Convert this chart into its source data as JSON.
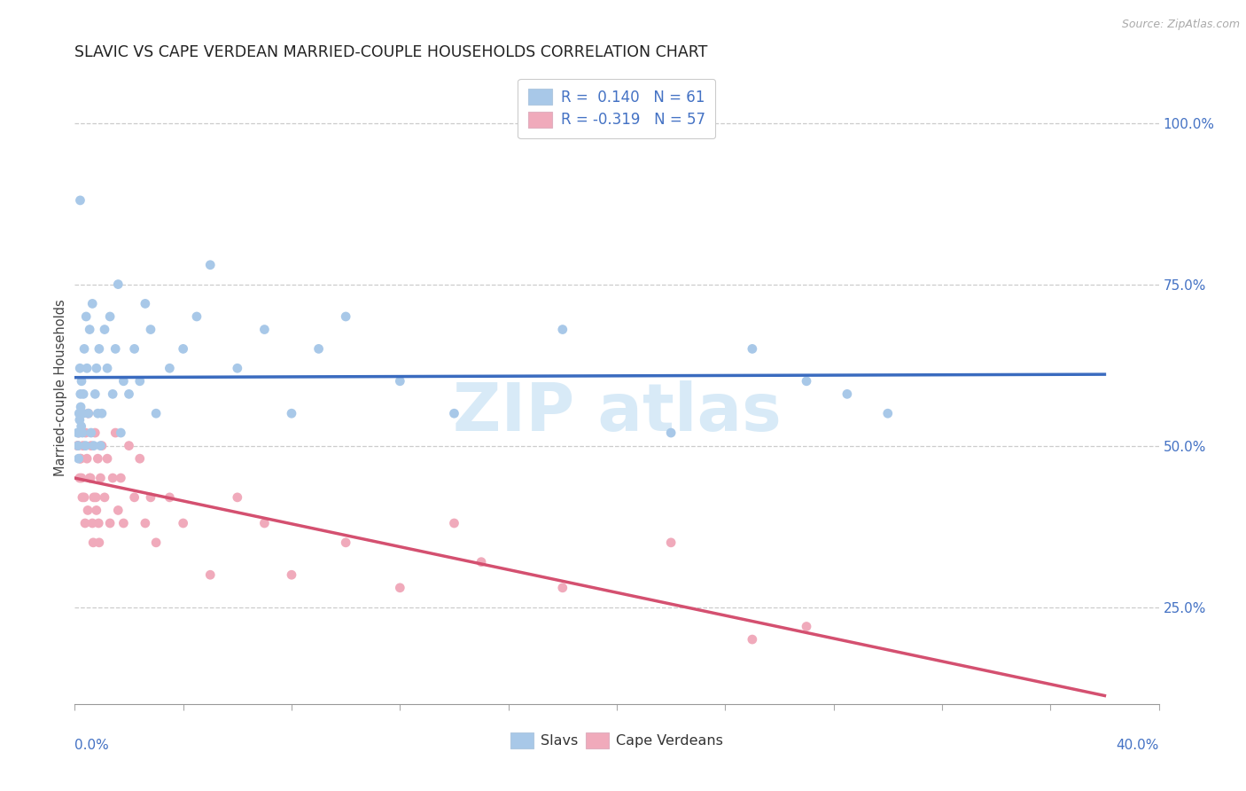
{
  "title": "SLAVIC VS CAPE VERDEAN MARRIED-COUPLE HOUSEHOLDS CORRELATION CHART",
  "source": "Source: ZipAtlas.com",
  "ylabel": "Married-couple Households",
  "x_min": 0.0,
  "x_max": 40.0,
  "y_min": 10.0,
  "y_max": 108.0,
  "y_ticks_right": [
    25.0,
    50.0,
    75.0,
    100.0
  ],
  "y_tick_labels_right": [
    "25.0%",
    "50.0%",
    "75.0%",
    "100.0%"
  ],
  "slavs_R": 0.14,
  "slavs_N": 61,
  "cape_R": -0.319,
  "cape_N": 57,
  "slavs_dot_color": "#a8c8e8",
  "cape_dot_color": "#f0aabb",
  "slavs_line_color": "#3a6bbf",
  "cape_line_color": "#d45070",
  "blue_text_color": "#4472c4",
  "watermark_color": "#cce4f5",
  "background_color": "#ffffff",
  "slavs_x": [
    0.15,
    0.18,
    0.2,
    0.22,
    0.25,
    0.28,
    0.3,
    0.32,
    0.35,
    0.4,
    0.42,
    0.45,
    0.5,
    0.55,
    0.6,
    0.65,
    0.7,
    0.75,
    0.8,
    0.85,
    0.9,
    0.95,
    1.0,
    1.1,
    1.2,
    1.3,
    1.4,
    1.5,
    1.6,
    1.7,
    1.8,
    2.0,
    2.2,
    2.4,
    2.6,
    2.8,
    3.0,
    3.5,
    4.0,
    4.5,
    5.0,
    6.0,
    7.0,
    8.0,
    9.0,
    10.0,
    12.0,
    14.0,
    18.0,
    22.0,
    25.0,
    27.0,
    28.5,
    30.0,
    0.1,
    0.12,
    0.14,
    0.16,
    0.19,
    0.21,
    0.24
  ],
  "slavs_y": [
    52,
    54,
    88,
    56,
    60,
    52,
    55,
    58,
    65,
    50,
    70,
    62,
    55,
    68,
    52,
    72,
    50,
    58,
    62,
    55,
    65,
    50,
    55,
    68,
    62,
    70,
    58,
    65,
    75,
    52,
    60,
    58,
    65,
    60,
    72,
    68,
    55,
    62,
    65,
    70,
    78,
    62,
    68,
    55,
    65,
    70,
    60,
    55,
    68,
    52,
    65,
    60,
    58,
    55,
    52,
    50,
    48,
    55,
    62,
    58,
    53
  ],
  "cape_x": [
    0.1,
    0.15,
    0.2,
    0.25,
    0.3,
    0.35,
    0.4,
    0.45,
    0.5,
    0.55,
    0.6,
    0.65,
    0.7,
    0.75,
    0.8,
    0.85,
    0.9,
    0.95,
    1.0,
    1.1,
    1.2,
    1.3,
    1.4,
    1.5,
    1.6,
    1.7,
    1.8,
    2.0,
    2.2,
    2.4,
    2.6,
    2.8,
    3.0,
    3.5,
    4.0,
    5.0,
    6.0,
    7.0,
    8.0,
    10.0,
    12.0,
    14.0,
    15.0,
    18.0,
    22.0,
    25.0,
    27.0,
    0.12,
    0.18,
    0.22,
    0.28,
    0.38,
    0.48,
    0.58,
    0.68,
    0.78,
    0.88
  ],
  "cape_y": [
    50,
    52,
    48,
    45,
    50,
    42,
    52,
    48,
    55,
    45,
    50,
    38,
    42,
    52,
    40,
    48,
    35,
    45,
    50,
    42,
    48,
    38,
    45,
    52,
    40,
    45,
    38,
    50,
    42,
    48,
    38,
    42,
    35,
    42,
    38,
    30,
    42,
    38,
    30,
    35,
    28,
    38,
    32,
    28,
    35,
    20,
    22,
    50,
    45,
    48,
    42,
    38,
    40,
    45,
    35,
    42,
    38
  ]
}
